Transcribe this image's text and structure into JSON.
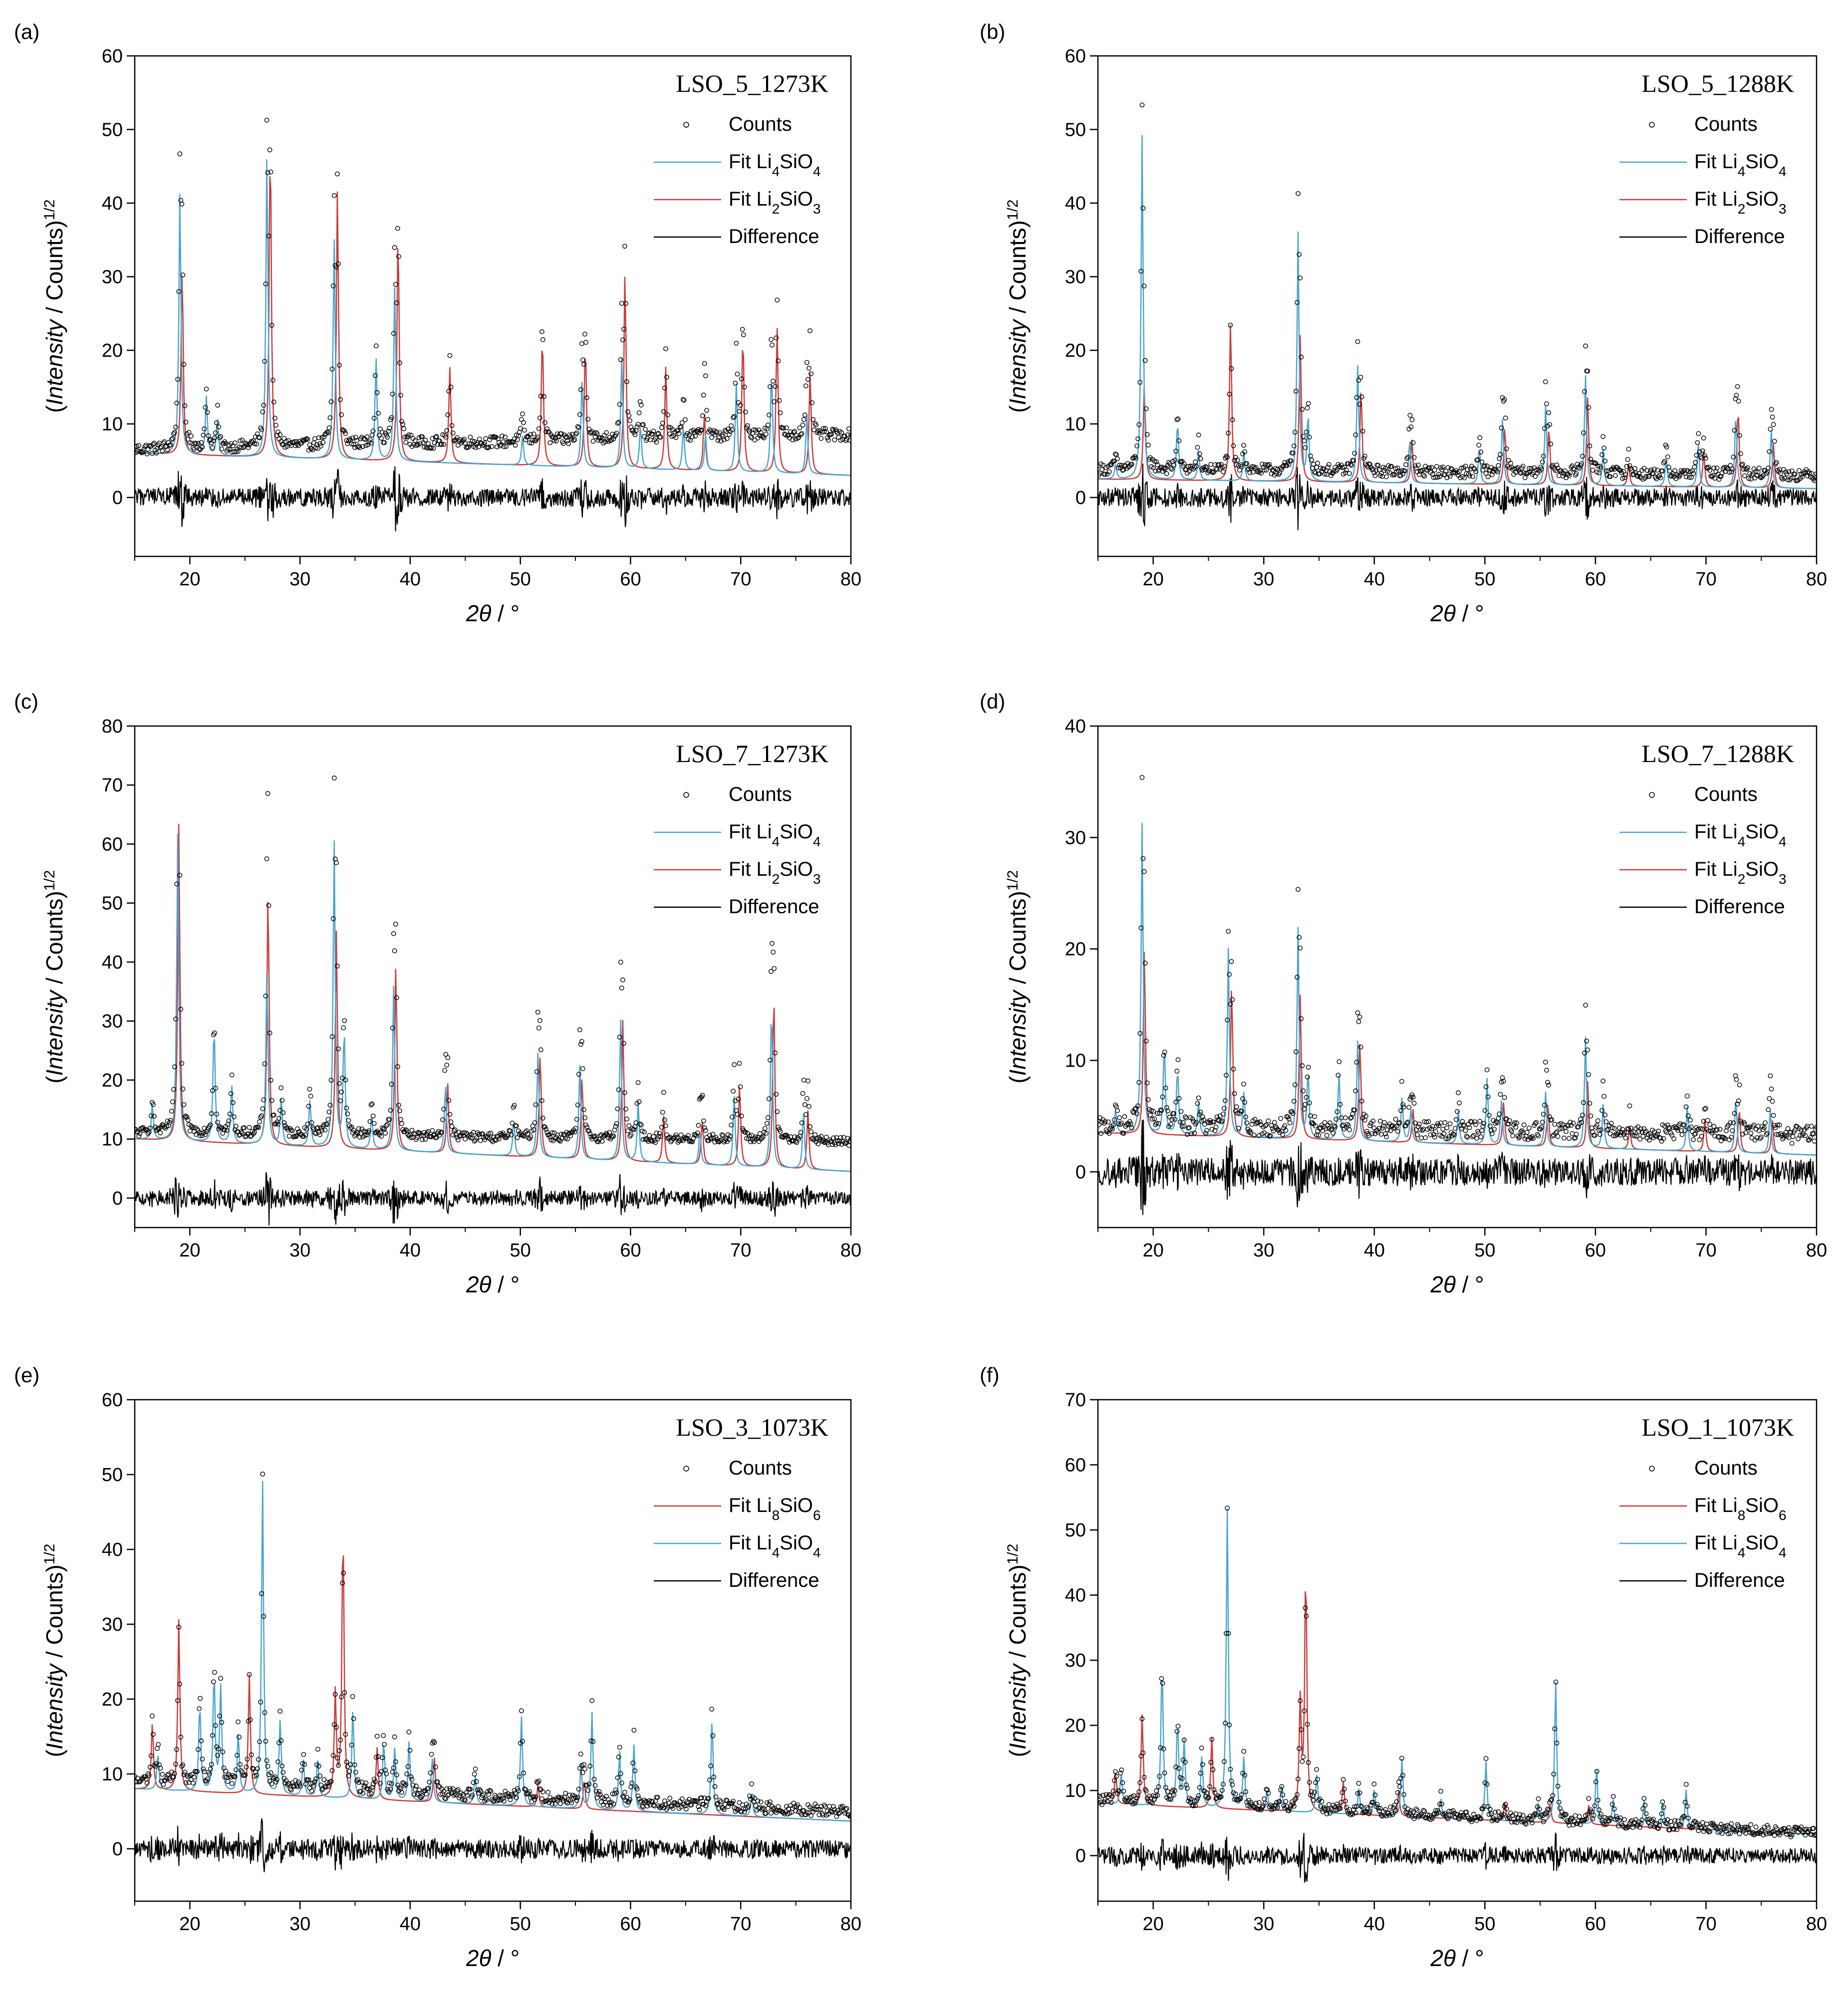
{
  "colors": {
    "counts_marker": "#000000",
    "li4sio4": "#4aa6cc",
    "li2sio3": "#cc3b3b",
    "li8sio6": "#cc3b3b",
    "difference": "#000000"
  },
  "chart_data": [
    {
      "panel_label": "(a)",
      "type": "scatter",
      "title": "LSO_5_1273K",
      "xlabel": "2θ / °",
      "ylabel": "(Intensity / Counts)^1/2",
      "xlim": [
        15,
        80
      ],
      "ylim": [
        -8,
        60
      ],
      "xticks": [
        "20",
        "30",
        "40",
        "50",
        "60",
        "70",
        "80"
      ],
      "yticks": [
        "0",
        "10",
        "20",
        "30",
        "40",
        "50",
        "60"
      ],
      "legend_position": "top-right",
      "legend": [
        "Counts",
        "Fit Li4SiO4",
        "Fit Li2SiO3",
        "Difference"
      ],
      "background_start": 6.5,
      "background_end": 8.5,
      "fit_background_start": 6.0,
      "fit_background_end": 3.0,
      "peaks_li4sio4": [
        [
          19.1,
          36
        ],
        [
          21.5,
          8
        ],
        [
          22.5,
          5
        ],
        [
          27.0,
          42
        ],
        [
          33.1,
          30
        ],
        [
          36.9,
          14
        ],
        [
          38.6,
          24
        ],
        [
          50.2,
          4
        ],
        [
          55.6,
          12
        ],
        [
          59.2,
          15
        ],
        [
          60.9,
          6
        ],
        [
          64.8,
          6
        ],
        [
          66.8,
          5
        ],
        [
          69.6,
          12
        ],
        [
          72.8,
          14
        ],
        [
          76.0,
          8
        ]
      ],
      "peaks_li2sio3": [
        [
          19.3,
          26
        ],
        [
          27.3,
          44
        ],
        [
          33.4,
          37
        ],
        [
          38.9,
          32
        ],
        [
          43.6,
          13
        ],
        [
          52.0,
          18
        ],
        [
          55.9,
          17
        ],
        [
          59.5,
          27
        ],
        [
          63.2,
          14
        ],
        [
          66.7,
          8
        ],
        [
          70.2,
          19
        ],
        [
          73.3,
          20
        ],
        [
          76.3,
          14
        ]
      ]
    },
    {
      "panel_label": "(b)",
      "type": "scatter",
      "title": "LSO_5_1288K",
      "xlabel": "2θ / °",
      "ylabel": "(Intensity / Counts)^1/2",
      "xlim": [
        15,
        80
      ],
      "ylim": [
        -8,
        60
      ],
      "xticks": [
        "20",
        "30",
        "40",
        "50",
        "60",
        "70",
        "80"
      ],
      "yticks": [
        "0",
        "10",
        "20",
        "30",
        "40",
        "50",
        "60"
      ],
      "legend_position": "top-right",
      "legend": [
        "Counts",
        "Fit Li4SiO4",
        "Fit Li2SiO3",
        "Difference"
      ],
      "background_start": 3.8,
      "background_end": 3.0,
      "fit_background_start": 2.5,
      "fit_background_end": 1.2,
      "peaks_li4sio4": [
        [
          16.6,
          2
        ],
        [
          19.0,
          47
        ],
        [
          22.2,
          8
        ],
        [
          24.1,
          4
        ],
        [
          28.2,
          4
        ],
        [
          33.1,
          34
        ],
        [
          34.0,
          9
        ],
        [
          38.5,
          16
        ],
        [
          43.2,
          6
        ],
        [
          49.5,
          5
        ],
        [
          51.6,
          9
        ],
        [
          55.5,
          11
        ],
        [
          59.1,
          15
        ],
        [
          60.7,
          5
        ],
        [
          66.4,
          4
        ],
        [
          69.3,
          6
        ],
        [
          72.7,
          10
        ],
        [
          75.9,
          8
        ]
      ],
      "peaks_li2sio3": [
        [
          19.2,
          13
        ],
        [
          27.0,
          22
        ],
        [
          33.3,
          20
        ],
        [
          38.8,
          13
        ],
        [
          43.4,
          6
        ],
        [
          51.8,
          8
        ],
        [
          55.8,
          8
        ],
        [
          59.3,
          12
        ],
        [
          63.0,
          3
        ],
        [
          69.8,
          5
        ],
        [
          72.9,
          11
        ],
        [
          76.1,
          6
        ]
      ]
    },
    {
      "panel_label": "(c)",
      "type": "scatter",
      "title": "LSO_7_1273K",
      "xlabel": "2θ / °",
      "ylabel": "(Intensity / Counts)^1/2",
      "xlim": [
        15,
        80
      ],
      "ylim": [
        -5,
        80
      ],
      "xticks": [
        "20",
        "30",
        "40",
        "50",
        "60",
        "70",
        "80"
      ],
      "yticks": [
        "0",
        "10",
        "20",
        "30",
        "40",
        "50",
        "60",
        "70",
        "80"
      ],
      "legend_position": "top-right",
      "legend": [
        "Counts",
        "Fit Li4SiO4",
        "Fit Li2SiO3",
        "Difference"
      ],
      "background_start": 11,
      "background_end": 9.5,
      "fit_background_start": 10,
      "fit_background_end": 4.5,
      "peaks_li4sio4": [
        [
          16.6,
          6
        ],
        [
          18.9,
          52
        ],
        [
          22.2,
          20
        ],
        [
          23.8,
          10
        ],
        [
          27.0,
          30
        ],
        [
          28.3,
          8
        ],
        [
          30.9,
          8
        ],
        [
          33.1,
          52
        ],
        [
          34.0,
          20
        ],
        [
          36.5,
          6
        ],
        [
          38.5,
          28
        ],
        [
          43.2,
          12
        ],
        [
          49.4,
          6
        ],
        [
          51.6,
          18
        ],
        [
          55.4,
          16
        ],
        [
          59.1,
          24
        ],
        [
          60.7,
          10
        ],
        [
          66.3,
          6
        ],
        [
          69.4,
          12
        ],
        [
          72.8,
          28
        ],
        [
          75.7,
          10
        ]
      ],
      "peaks_li2sio3": [
        [
          19.0,
          54
        ],
        [
          27.1,
          44
        ],
        [
          33.3,
          37
        ],
        [
          38.7,
          32
        ],
        [
          43.4,
          12
        ],
        [
          51.8,
          18
        ],
        [
          55.6,
          14
        ],
        [
          59.3,
          24
        ],
        [
          63.0,
          8
        ],
        [
          66.5,
          8
        ],
        [
          69.9,
          14
        ],
        [
          73.0,
          30
        ],
        [
          76.1,
          10
        ]
      ]
    },
    {
      "panel_label": "(d)",
      "type": "scatter",
      "title": "LSO_7_1288K",
      "xlabel": "2θ / °",
      "ylabel": "(Intensity / Counts)^1/2",
      "xlim": [
        15,
        80
      ],
      "ylim": [
        -5,
        40
      ],
      "xticks": [
        "20",
        "30",
        "40",
        "50",
        "60",
        "70",
        "80"
      ],
      "yticks": [
        "0",
        "10",
        "20",
        "30",
        "40"
      ],
      "legend_position": "top-right",
      "legend": [
        "Counts",
        "Fit Li4SiO4",
        "Fit Li2SiO3",
        "Difference"
      ],
      "background_start": 4,
      "background_end": 3.3,
      "fit_background_start": 3.5,
      "fit_background_end": 1.5,
      "peaks_li4sio4": [
        [
          16.6,
          2
        ],
        [
          19.0,
          28
        ],
        [
          21.0,
          8
        ],
        [
          22.2,
          6
        ],
        [
          24.1,
          3
        ],
        [
          26.8,
          17
        ],
        [
          28.2,
          4
        ],
        [
          33.1,
          19
        ],
        [
          34.0,
          6
        ],
        [
          36.8,
          6
        ],
        [
          38.5,
          9
        ],
        [
          42.5,
          4
        ],
        [
          43.3,
          3
        ],
        [
          47.6,
          3
        ],
        [
          50.2,
          6
        ],
        [
          51.5,
          4
        ],
        [
          55.5,
          5
        ],
        [
          59.1,
          10
        ],
        [
          60.7,
          4
        ],
        [
          68.3,
          4
        ],
        [
          72.7,
          5
        ],
        [
          75.8,
          4
        ]
      ],
      "peaks_li2sio3": [
        [
          19.2,
          17
        ],
        [
          27.1,
          14
        ],
        [
          33.3,
          13
        ],
        [
          38.7,
          9
        ],
        [
          43.5,
          3
        ],
        [
          51.7,
          4
        ],
        [
          55.7,
          4
        ],
        [
          59.3,
          6
        ],
        [
          63.1,
          2
        ],
        [
          69.9,
          3
        ],
        [
          73.0,
          4
        ],
        [
          76.0,
          3
        ]
      ]
    },
    {
      "panel_label": "(e)",
      "type": "scatter",
      "title": "LSO_3_1073K",
      "xlabel": "2θ / °",
      "ylabel": "(Intensity / Counts)^1/2",
      "xlim": [
        15,
        80
      ],
      "ylim": [
        -7,
        60
      ],
      "xticks": [
        "20",
        "30",
        "40",
        "50",
        "60",
        "70",
        "80"
      ],
      "yticks": [
        "0",
        "10",
        "20",
        "30",
        "40",
        "50",
        "60"
      ],
      "legend_position": "top-right",
      "legend": [
        "Counts",
        "Fit Li8SiO6",
        "Fit Li4SiO4",
        "Difference"
      ],
      "background_start": 9,
      "background_end": 5,
      "fit_background_start": 8,
      "fit_background_end": 3.7,
      "peaks_li4sio4": [
        [
          17.1,
          5
        ],
        [
          20.9,
          12
        ],
        [
          22.2,
          16
        ],
        [
          22.8,
          14
        ],
        [
          24.4,
          8
        ],
        [
          26.6,
          42
        ],
        [
          28.2,
          10
        ],
        [
          30.3,
          5
        ],
        [
          31.6,
          5
        ],
        [
          34.8,
          12
        ],
        [
          37.6,
          8
        ],
        [
          38.6,
          7
        ],
        [
          39.9,
          8
        ],
        [
          42.0,
          6
        ],
        [
          45.9,
          4
        ],
        [
          50.1,
          12
        ],
        [
          55.5,
          6
        ],
        [
          56.5,
          13
        ],
        [
          59.0,
          8
        ],
        [
          60.3,
          9
        ],
        [
          67.4,
          13
        ],
        [
          71.0,
          3
        ]
      ],
      "peaks_li8sio6": [
        [
          16.6,
          9
        ],
        [
          19.0,
          23
        ],
        [
          25.4,
          16
        ],
        [
          33.2,
          14
        ],
        [
          33.9,
          37
        ],
        [
          37.0,
          7
        ],
        [
          42.2,
          6
        ],
        [
          51.6,
          3
        ],
        [
          55.8,
          4
        ]
      ]
    },
    {
      "panel_label": "(f)",
      "type": "scatter",
      "title": "LSO_1_1073K",
      "xlabel": "2θ / °",
      "ylabel": "(Intensity / Counts)^1/2",
      "xlim": [
        15,
        80
      ],
      "ylim": [
        -7,
        70
      ],
      "xticks": [
        "20",
        "30",
        "40",
        "50",
        "60",
        "70",
        "80"
      ],
      "yticks": [
        "0",
        "10",
        "20",
        "30",
        "40",
        "50",
        "60",
        "70"
      ],
      "legend_position": "top-right",
      "legend": [
        "Counts",
        "Fit Li8SiO6",
        "Fit Li4SiO4",
        "Difference"
      ],
      "background_start": 8.5,
      "background_end": 3.5,
      "fit_background_start": 8,
      "fit_background_end": 3.3,
      "peaks_li4sio4": [
        [
          17.1,
          5
        ],
        [
          20.8,
          22
        ],
        [
          22.2,
          13
        ],
        [
          22.8,
          10
        ],
        [
          24.4,
          8
        ],
        [
          26.7,
          46
        ],
        [
          28.2,
          8
        ],
        [
          30.3,
          3
        ],
        [
          31.6,
          4
        ],
        [
          34.8,
          6
        ],
        [
          38.6,
          4
        ],
        [
          40.0,
          4
        ],
        [
          42.5,
          9
        ],
        [
          46.0,
          3
        ],
        [
          50.1,
          9
        ],
        [
          54.8,
          3
        ],
        [
          56.4,
          22
        ],
        [
          60.1,
          9
        ],
        [
          61.6,
          4
        ],
        [
          64.4,
          4
        ],
        [
          66.1,
          4
        ],
        [
          68.2,
          6
        ]
      ],
      "peaks_li8sio6": [
        [
          16.6,
          5
        ],
        [
          19.0,
          14
        ],
        [
          25.3,
          11
        ],
        [
          33.3,
          17
        ],
        [
          33.8,
          38
        ],
        [
          37.2,
          5
        ],
        [
          42.2,
          4
        ],
        [
          51.8,
          3
        ],
        [
          55.9,
          3
        ],
        [
          59.4,
          3
        ]
      ]
    }
  ]
}
